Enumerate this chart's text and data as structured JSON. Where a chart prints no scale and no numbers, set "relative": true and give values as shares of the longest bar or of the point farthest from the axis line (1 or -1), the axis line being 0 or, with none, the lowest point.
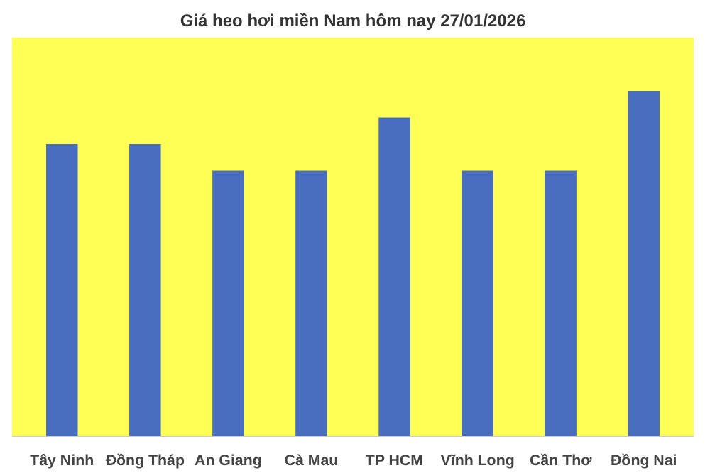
{
  "chart_data": {
    "type": "bar",
    "title": "Giá heo hơi miền Nam hôm nay 27/01/2026",
    "categories": [
      "Tây Ninh",
      "Đồng Tháp",
      "An Giang",
      "Cà Mau",
      "TP HCM",
      "Vĩnh Long",
      "Cần Thơ",
      "Đồng Nai"
    ],
    "values": [
      0.846,
      0.846,
      0.769,
      0.769,
      0.923,
      0.769,
      0.769,
      1
    ],
    "color": "#4a6ebf",
    "relative": true
  }
}
